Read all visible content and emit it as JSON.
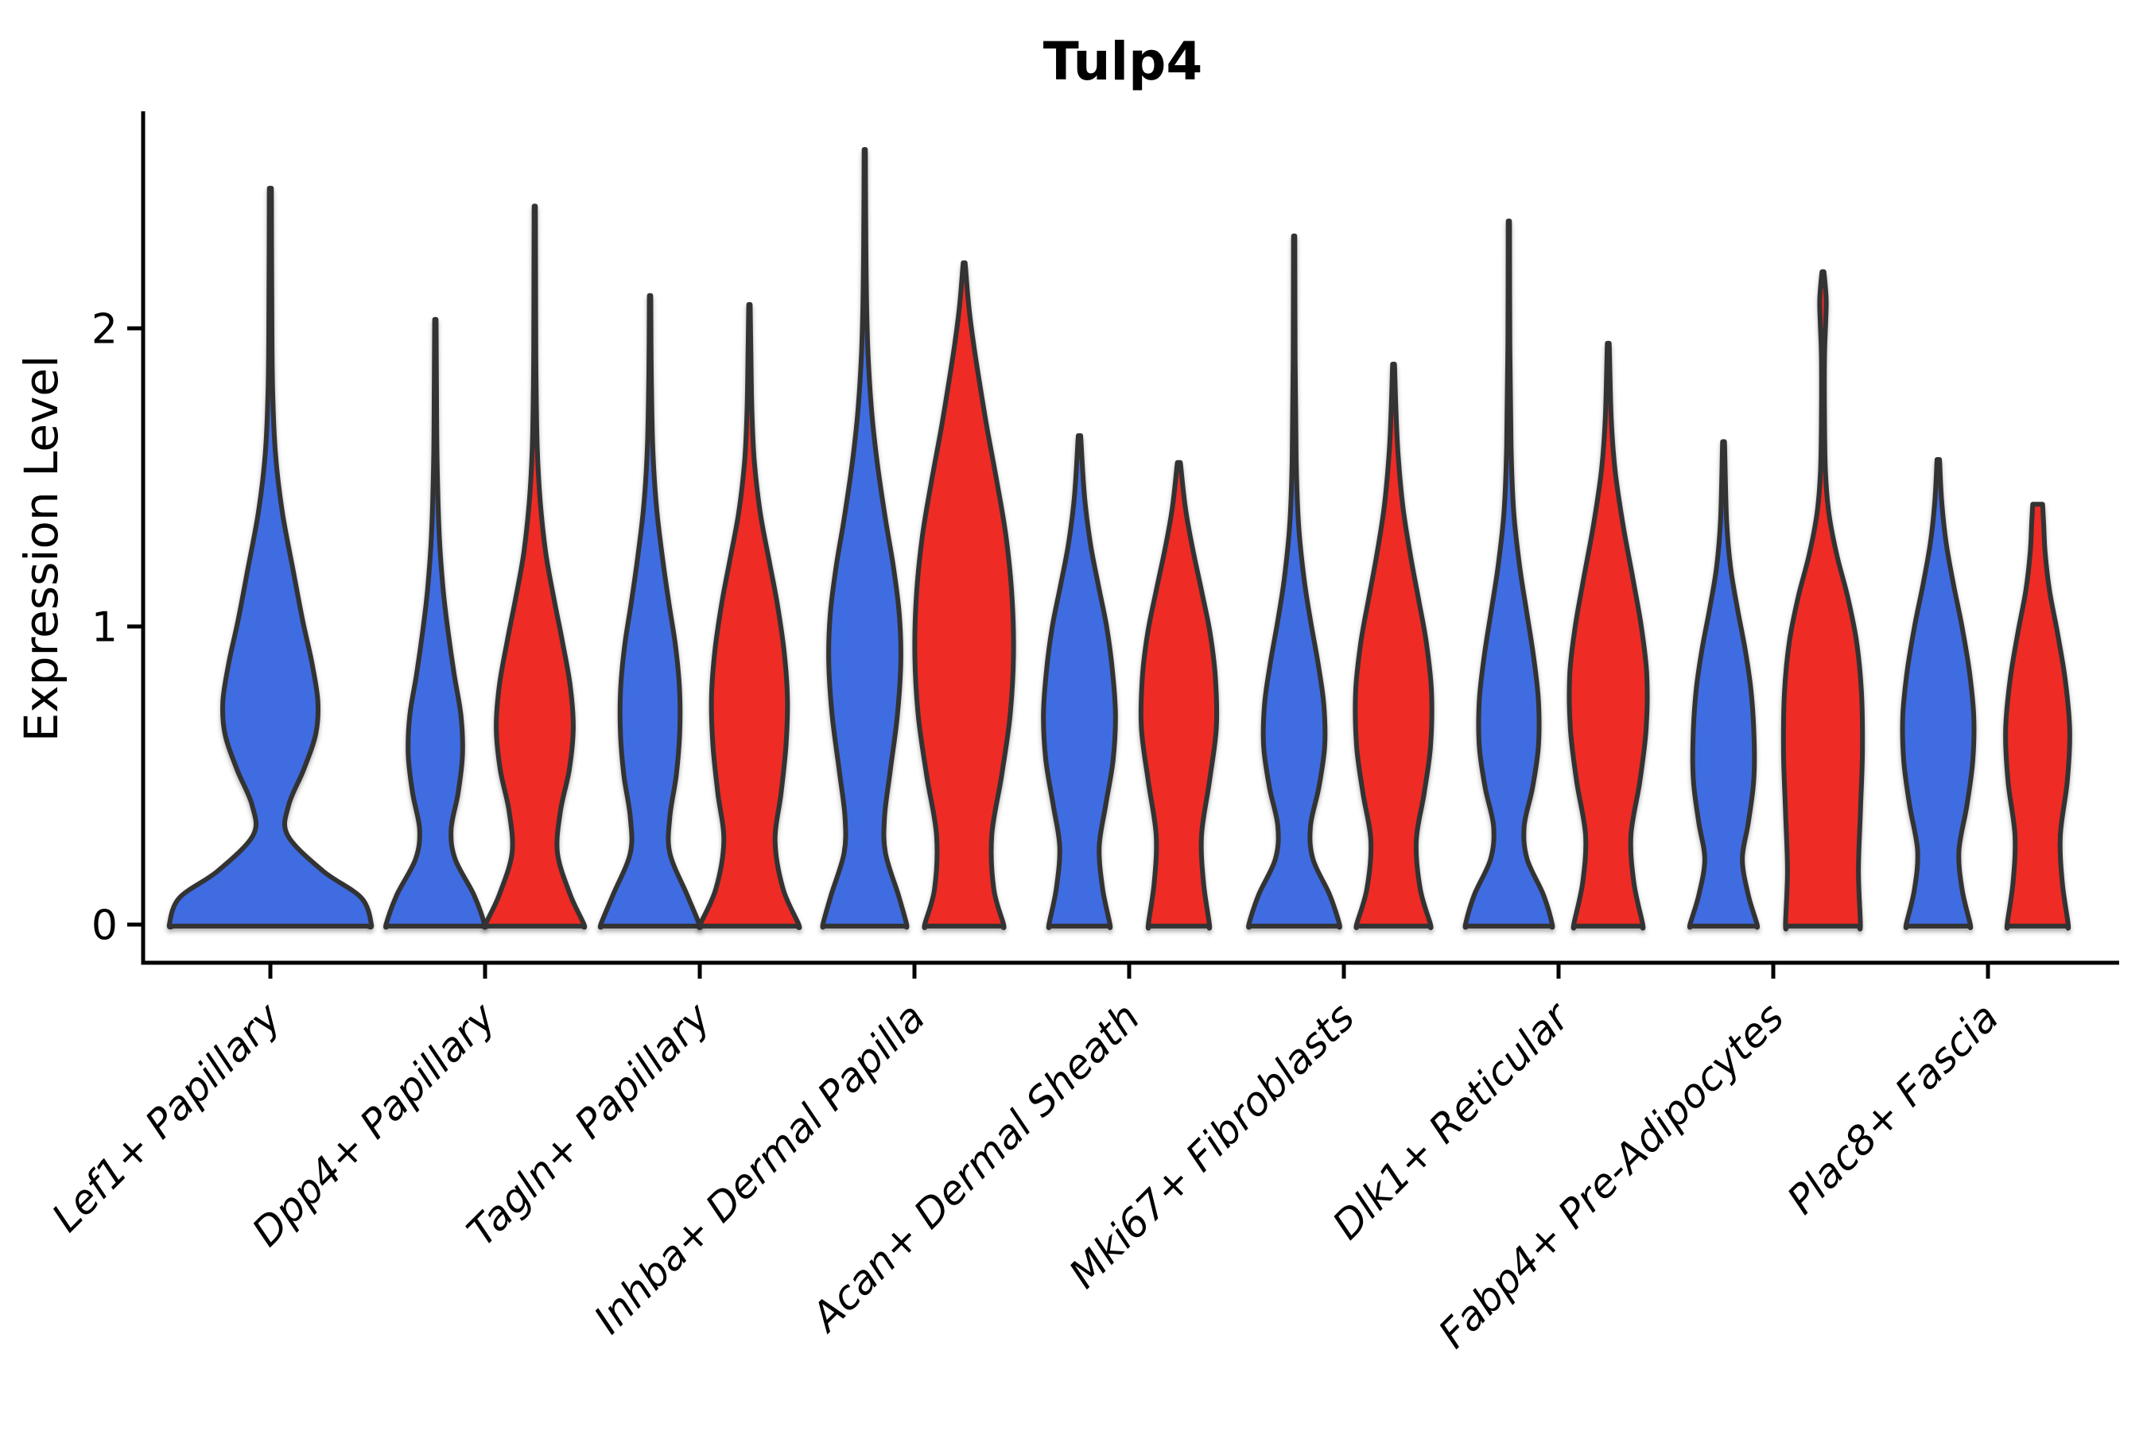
{
  "title": "Tulp4",
  "y_axis": {
    "label": "Expression Level",
    "tick_labels": [
      "0",
      "1",
      "2"
    ]
  },
  "chart_data": {
    "type": "violin",
    "title": "Tulp4",
    "xlabel": "",
    "ylabel": "Expression Level",
    "ylim": [
      -0.05,
      2.73
    ],
    "yticks": [
      0,
      1,
      2
    ],
    "grid": false,
    "legend": "none",
    "categories": [
      "Lef1+ Papillary",
      "Dpp4+ Papillary",
      "Tagln+ Papillary",
      "Inhba+ Dermal Papilla",
      "Acan+ Dermal Sheath",
      "Mki67+ Fibroblasts",
      "Dlk1+ Reticular",
      "Fabp4+ Pre-Adipocytes",
      "Plac8+ Fascia"
    ],
    "colors": {
      "blue": "#3f6ce1",
      "red": "#ee2b25",
      "stroke": "#333333",
      "axis": "#000000"
    },
    "series": [
      {
        "name": "blue",
        "color": "#3f6ce1",
        "max_expression": [
          2.47,
          2.03,
          2.11,
          2.6,
          1.64,
          2.31,
          2.36,
          1.62,
          1.56
        ]
      },
      {
        "name": "red",
        "color": "#ee2b25",
        "max_expression": [
          null,
          2.41,
          2.08,
          2.22,
          1.55,
          1.88,
          1.95,
          2.19,
          1.41
        ]
      }
    ],
    "violins": [
      {
        "category": "Lef1+ Papillary",
        "category_index": 0,
        "slot": "single",
        "color": "blue",
        "max": 2.47,
        "profile": [
          [
            0,
            1.0
          ],
          [
            0.09,
            0.9
          ],
          [
            0.18,
            0.52
          ],
          [
            0.3,
            0.17
          ],
          [
            0.4,
            0.18
          ],
          [
            0.52,
            0.33
          ],
          [
            0.64,
            0.45
          ],
          [
            0.75,
            0.47
          ],
          [
            0.88,
            0.41
          ],
          [
            1.02,
            0.32
          ],
          [
            1.18,
            0.23
          ],
          [
            1.38,
            0.12
          ],
          [
            1.58,
            0.05
          ],
          [
            1.8,
            0.022
          ],
          [
            2.1,
            0.014
          ],
          [
            2.47,
            0.01
          ]
        ]
      },
      {
        "category": "Dpp4+ Papillary",
        "category_index": 1,
        "slot": "left",
        "color": "blue",
        "max": 2.03,
        "profile": [
          [
            0,
            1.0
          ],
          [
            0.1,
            0.78
          ],
          [
            0.22,
            0.4
          ],
          [
            0.32,
            0.32
          ],
          [
            0.44,
            0.46
          ],
          [
            0.57,
            0.55
          ],
          [
            0.7,
            0.52
          ],
          [
            0.84,
            0.38
          ],
          [
            0.98,
            0.26
          ],
          [
            1.12,
            0.16
          ],
          [
            1.3,
            0.08
          ],
          [
            1.55,
            0.035
          ],
          [
            1.8,
            0.022
          ],
          [
            2.03,
            0.015
          ]
        ]
      },
      {
        "category": "Dpp4+ Papillary",
        "category_index": 1,
        "slot": "right",
        "color": "red",
        "max": 2.41,
        "profile": [
          [
            0,
            1.0
          ],
          [
            0.1,
            0.72
          ],
          [
            0.24,
            0.46
          ],
          [
            0.38,
            0.52
          ],
          [
            0.52,
            0.7
          ],
          [
            0.66,
            0.78
          ],
          [
            0.8,
            0.72
          ],
          [
            0.95,
            0.56
          ],
          [
            1.1,
            0.38
          ],
          [
            1.25,
            0.22
          ],
          [
            1.42,
            0.11
          ],
          [
            1.6,
            0.05
          ],
          [
            1.85,
            0.025
          ],
          [
            2.1,
            0.018
          ],
          [
            2.41,
            0.012
          ]
        ]
      },
      {
        "category": "Tagln+ Papillary",
        "category_index": 2,
        "slot": "left",
        "color": "blue",
        "max": 2.11,
        "profile": [
          [
            0,
            1.0
          ],
          [
            0.1,
            0.75
          ],
          [
            0.24,
            0.4
          ],
          [
            0.36,
            0.4
          ],
          [
            0.5,
            0.53
          ],
          [
            0.64,
            0.6
          ],
          [
            0.78,
            0.6
          ],
          [
            0.93,
            0.52
          ],
          [
            1.08,
            0.38
          ],
          [
            1.22,
            0.26
          ],
          [
            1.4,
            0.13
          ],
          [
            1.6,
            0.055
          ],
          [
            1.85,
            0.025
          ],
          [
            2.11,
            0.015
          ]
        ]
      },
      {
        "category": "Tagln+ Papillary",
        "category_index": 2,
        "slot": "right",
        "color": "red",
        "max": 2.08,
        "profile": [
          [
            0,
            1.0
          ],
          [
            0.12,
            0.68
          ],
          [
            0.28,
            0.52
          ],
          [
            0.44,
            0.64
          ],
          [
            0.6,
            0.74
          ],
          [
            0.76,
            0.77
          ],
          [
            0.92,
            0.7
          ],
          [
            1.08,
            0.56
          ],
          [
            1.22,
            0.4
          ],
          [
            1.38,
            0.22
          ],
          [
            1.55,
            0.1
          ],
          [
            1.72,
            0.05
          ],
          [
            1.9,
            0.03
          ],
          [
            2.08,
            0.015
          ]
        ]
      },
      {
        "category": "Inhba+ Dermal Papilla",
        "category_index": 3,
        "slot": "left",
        "color": "blue",
        "max": 2.6,
        "profile": [
          [
            0,
            0.85
          ],
          [
            0.1,
            0.68
          ],
          [
            0.24,
            0.42
          ],
          [
            0.36,
            0.4
          ],
          [
            0.52,
            0.52
          ],
          [
            0.7,
            0.66
          ],
          [
            0.88,
            0.73
          ],
          [
            1.04,
            0.7
          ],
          [
            1.2,
            0.58
          ],
          [
            1.36,
            0.42
          ],
          [
            1.54,
            0.26
          ],
          [
            1.72,
            0.14
          ],
          [
            1.92,
            0.065
          ],
          [
            2.15,
            0.03
          ],
          [
            2.4,
            0.018
          ],
          [
            2.6,
            0.012
          ]
        ]
      },
      {
        "category": "Inhba+ Dermal Papilla",
        "category_index": 3,
        "slot": "right",
        "color": "red",
        "max": 2.22,
        "profile": [
          [
            0,
            0.8
          ],
          [
            0.12,
            0.6
          ],
          [
            0.3,
            0.56
          ],
          [
            0.5,
            0.76
          ],
          [
            0.7,
            0.93
          ],
          [
            0.9,
            1.0
          ],
          [
            1.1,
            0.97
          ],
          [
            1.3,
            0.85
          ],
          [
            1.48,
            0.67
          ],
          [
            1.66,
            0.47
          ],
          [
            1.82,
            0.31
          ],
          [
            1.96,
            0.18
          ],
          [
            2.08,
            0.09
          ],
          [
            2.22,
            0.02
          ]
        ]
      },
      {
        "category": "Acan+ Dermal Sheath",
        "category_index": 4,
        "slot": "left",
        "color": "blue",
        "max": 1.64,
        "profile": [
          [
            0,
            0.62
          ],
          [
            0.12,
            0.47
          ],
          [
            0.26,
            0.4
          ],
          [
            0.4,
            0.53
          ],
          [
            0.55,
            0.68
          ],
          [
            0.7,
            0.73
          ],
          [
            0.85,
            0.67
          ],
          [
            1.0,
            0.55
          ],
          [
            1.14,
            0.38
          ],
          [
            1.28,
            0.22
          ],
          [
            1.44,
            0.1
          ],
          [
            1.64,
            0.025
          ]
        ]
      },
      {
        "category": "Acan+ Dermal Sheath",
        "category_index": 4,
        "slot": "right",
        "color": "red",
        "max": 1.55,
        "profile": [
          [
            0,
            0.62
          ],
          [
            0.14,
            0.5
          ],
          [
            0.3,
            0.46
          ],
          [
            0.48,
            0.62
          ],
          [
            0.66,
            0.76
          ],
          [
            0.83,
            0.74
          ],
          [
            0.98,
            0.63
          ],
          [
            1.12,
            0.46
          ],
          [
            1.26,
            0.28
          ],
          [
            1.4,
            0.13
          ],
          [
            1.55,
            0.03
          ]
        ]
      },
      {
        "category": "Mki67+ Fibroblasts",
        "category_index": 5,
        "slot": "left",
        "color": "blue",
        "max": 2.31,
        "profile": [
          [
            0,
            0.92
          ],
          [
            0.1,
            0.72
          ],
          [
            0.22,
            0.38
          ],
          [
            0.33,
            0.33
          ],
          [
            0.46,
            0.5
          ],
          [
            0.6,
            0.62
          ],
          [
            0.74,
            0.6
          ],
          [
            0.88,
            0.48
          ],
          [
            1.02,
            0.33
          ],
          [
            1.16,
            0.2
          ],
          [
            1.34,
            0.09
          ],
          [
            1.56,
            0.04
          ],
          [
            1.9,
            0.02
          ],
          [
            2.31,
            0.012
          ]
        ]
      },
      {
        "category": "Mki67+ Fibroblasts",
        "category_index": 5,
        "slot": "right",
        "color": "red",
        "max": 1.88,
        "profile": [
          [
            0,
            0.75
          ],
          [
            0.12,
            0.54
          ],
          [
            0.28,
            0.46
          ],
          [
            0.44,
            0.62
          ],
          [
            0.6,
            0.75
          ],
          [
            0.78,
            0.77
          ],
          [
            0.94,
            0.67
          ],
          [
            1.08,
            0.52
          ],
          [
            1.24,
            0.34
          ],
          [
            1.4,
            0.19
          ],
          [
            1.58,
            0.09
          ],
          [
            1.74,
            0.045
          ],
          [
            1.88,
            0.02
          ]
        ]
      },
      {
        "category": "Dlk1+ Reticular",
        "category_index": 6,
        "slot": "left",
        "color": "blue",
        "max": 2.36,
        "profile": [
          [
            0,
            0.88
          ],
          [
            0.1,
            0.7
          ],
          [
            0.22,
            0.37
          ],
          [
            0.33,
            0.31
          ],
          [
            0.46,
            0.48
          ],
          [
            0.6,
            0.6
          ],
          [
            0.75,
            0.6
          ],
          [
            0.9,
            0.5
          ],
          [
            1.05,
            0.36
          ],
          [
            1.2,
            0.22
          ],
          [
            1.38,
            0.1
          ],
          [
            1.6,
            0.045
          ],
          [
            1.95,
            0.02
          ],
          [
            2.36,
            0.012
          ]
        ]
      },
      {
        "category": "Dlk1+ Reticular",
        "category_index": 6,
        "slot": "right",
        "color": "red",
        "max": 1.95,
        "profile": [
          [
            0,
            0.7
          ],
          [
            0.14,
            0.52
          ],
          [
            0.3,
            0.46
          ],
          [
            0.48,
            0.64
          ],
          [
            0.66,
            0.77
          ],
          [
            0.84,
            0.78
          ],
          [
            1.0,
            0.67
          ],
          [
            1.16,
            0.5
          ],
          [
            1.34,
            0.3
          ],
          [
            1.52,
            0.14
          ],
          [
            1.7,
            0.06
          ],
          [
            1.95,
            0.02
          ]
        ]
      },
      {
        "category": "Fabp4+ Pre-Adipocytes",
        "category_index": 7,
        "slot": "left",
        "color": "blue",
        "max": 1.62,
        "profile": [
          [
            0,
            0.68
          ],
          [
            0.1,
            0.5
          ],
          [
            0.22,
            0.38
          ],
          [
            0.34,
            0.5
          ],
          [
            0.48,
            0.61
          ],
          [
            0.62,
            0.62
          ],
          [
            0.78,
            0.56
          ],
          [
            0.92,
            0.44
          ],
          [
            1.06,
            0.28
          ],
          [
            1.2,
            0.14
          ],
          [
            1.36,
            0.06
          ],
          [
            1.62,
            0.02
          ]
        ]
      },
      {
        "category": "Fabp4+ Pre-Adipocytes",
        "category_index": 7,
        "slot": "right",
        "color": "red",
        "max": 2.19,
        "profile": [
          [
            0,
            0.76
          ],
          [
            0.18,
            0.72
          ],
          [
            0.38,
            0.76
          ],
          [
            0.58,
            0.8
          ],
          [
            0.78,
            0.78
          ],
          [
            0.95,
            0.68
          ],
          [
            1.1,
            0.5
          ],
          [
            1.24,
            0.28
          ],
          [
            1.38,
            0.12
          ],
          [
            1.52,
            0.05
          ],
          [
            1.7,
            0.03
          ],
          [
            1.9,
            0.03
          ],
          [
            2.02,
            0.055
          ],
          [
            2.1,
            0.065
          ],
          [
            2.19,
            0.02
          ]
        ]
      },
      {
        "category": "Plac8+ Fascia",
        "category_index": 8,
        "slot": "left",
        "color": "blue",
        "max": 1.56,
        "profile": [
          [
            0,
            0.65
          ],
          [
            0.12,
            0.48
          ],
          [
            0.25,
            0.42
          ],
          [
            0.4,
            0.58
          ],
          [
            0.55,
            0.7
          ],
          [
            0.7,
            0.72
          ],
          [
            0.85,
            0.63
          ],
          [
            1.0,
            0.48
          ],
          [
            1.14,
            0.31
          ],
          [
            1.28,
            0.16
          ],
          [
            1.42,
            0.07
          ],
          [
            1.56,
            0.025
          ]
        ]
      },
      {
        "category": "Plac8+ Fascia",
        "category_index": 8,
        "slot": "right",
        "color": "red",
        "max": 1.41,
        "profile": [
          [
            0,
            0.62
          ],
          [
            0.14,
            0.5
          ],
          [
            0.3,
            0.46
          ],
          [
            0.48,
            0.6
          ],
          [
            0.65,
            0.65
          ],
          [
            0.82,
            0.56
          ],
          [
            0.98,
            0.4
          ],
          [
            1.12,
            0.24
          ],
          [
            1.25,
            0.15
          ],
          [
            1.35,
            0.12
          ],
          [
            1.41,
            0.1
          ]
        ]
      }
    ]
  }
}
